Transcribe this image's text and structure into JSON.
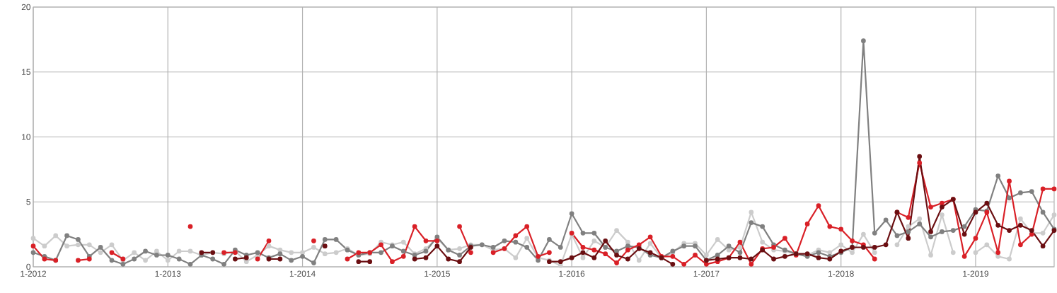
{
  "chart_data": {
    "type": "line",
    "marker": "circle",
    "grid": true,
    "x": [
      "2012-01",
      "2012-02",
      "2012-03",
      "2012-04",
      "2012-05",
      "2012-06",
      "2012-07",
      "2012-08",
      "2012-09",
      "2012-10",
      "2012-11",
      "2012-12",
      "2013-01",
      "2013-02",
      "2013-03",
      "2013-04",
      "2013-05",
      "2013-06",
      "2013-07",
      "2013-08",
      "2013-09",
      "2013-10",
      "2013-11",
      "2013-12",
      "2014-01",
      "2014-02",
      "2014-03",
      "2014-04",
      "2014-05",
      "2014-06",
      "2014-07",
      "2014-08",
      "2014-09",
      "2014-10",
      "2014-11",
      "2014-12",
      "2015-01",
      "2015-02",
      "2015-03",
      "2015-04",
      "2015-05",
      "2015-06",
      "2015-07",
      "2015-08",
      "2015-09",
      "2015-10",
      "2015-11",
      "2015-12",
      "2016-01",
      "2016-02",
      "2016-03",
      "2016-04",
      "2016-05",
      "2016-06",
      "2016-07",
      "2016-08",
      "2016-09",
      "2016-10",
      "2016-11",
      "2016-12",
      "2017-01",
      "2017-02",
      "2017-03",
      "2017-04",
      "2017-05",
      "2017-06",
      "2017-07",
      "2017-08",
      "2017-09",
      "2017-10",
      "2017-11",
      "2017-12",
      "2018-01",
      "2018-02",
      "2018-03",
      "2018-04",
      "2018-05",
      "2018-06",
      "2018-07",
      "2018-08",
      "2018-09",
      "2018-10",
      "2018-11",
      "2018-12",
      "2019-01",
      "2019-02",
      "2019-03",
      "2019-04",
      "2019-05",
      "2019-06",
      "2019-07",
      "2019-08"
    ],
    "xlim": [
      "2012-01",
      "2019-08"
    ],
    "xticks": [
      {
        "value": "2012-01",
        "label": "1-2012"
      },
      {
        "value": "2013-01",
        "label": "1-2013"
      },
      {
        "value": "2014-01",
        "label": "1-2014"
      },
      {
        "value": "2015-01",
        "label": "1-2015"
      },
      {
        "value": "2016-01",
        "label": "1-2016"
      },
      {
        "value": "2017-01",
        "label": "1-2017"
      },
      {
        "value": "2018-01",
        "label": "1-2018"
      },
      {
        "value": "2019-01",
        "label": "1-2019"
      }
    ],
    "ylim": [
      0,
      20
    ],
    "yticks": [
      0,
      5,
      10,
      15,
      20
    ],
    "series": [
      {
        "color": "#cccccc",
        "values": [
          2.2,
          1.6,
          2.4,
          1.6,
          1.7,
          1.7,
          1.1,
          1.7,
          0.5,
          1.1,
          0.5,
          1.2,
          0.5,
          1.2,
          1.2,
          0.9,
          1.1,
          1.0,
          1.2,
          0.4,
          0.9,
          1.6,
          1.3,
          1.1,
          1.1,
          1.5,
          1.0,
          1.1,
          1.4,
          0.9,
          1.0,
          1.9,
          1.7,
          1.9,
          1.0,
          1.4,
          2.2,
          1.3,
          1.4,
          1.7,
          1.7,
          1.3,
          1.4,
          0.7,
          2.2,
          0.7,
          0.5,
          0.1,
          2.5,
          0.7,
          2.0,
          1.5,
          2.8,
          1.9,
          0.5,
          1.8,
          0.7,
          1.1,
          1.8,
          1.8,
          0.9,
          2.1,
          1.3,
          1.5,
          4.2,
          1.9,
          1.3,
          1.2,
          1.0,
          0.9,
          1.3,
          1.1,
          1.7,
          1.1,
          2.5,
          1.1,
          null,
          1.7,
          3.1,
          3.7,
          0.9,
          4.0,
          1.1,
          null,
          1.1,
          1.7,
          0.8,
          0.6,
          3.7,
          2.6,
          2.6,
          4.0
        ]
      },
      {
        "color": "#808080",
        "values": [
          1.1,
          0.8,
          0.5,
          2.4,
          2.1,
          0.8,
          1.5,
          0.5,
          0.2,
          0.6,
          1.2,
          0.9,
          0.9,
          0.6,
          0.2,
          0.9,
          0.6,
          0.2,
          1.3,
          0.9,
          1.1,
          0.7,
          1.0,
          0.5,
          0.8,
          0.3,
          2.1,
          2.1,
          1.3,
          0.9,
          1.1,
          1.1,
          1.6,
          1.2,
          0.9,
          1.2,
          2.3,
          1.3,
          0.9,
          1.6,
          1.7,
          1.5,
          2.0,
          1.9,
          1.5,
          0.5,
          2.1,
          1.5,
          4.1,
          2.6,
          2.6,
          1.5,
          1.2,
          1.6,
          1.5,
          0.9,
          0.7,
          1.2,
          1.6,
          1.6,
          0.5,
          0.9,
          1.6,
          1.1,
          3.4,
          3.1,
          1.7,
          1.3,
          1.0,
          0.8,
          1.1,
          0.8,
          1.1,
          1.5,
          17.4,
          2.6,
          3.6,
          2.4,
          2.7,
          3.3,
          2.3,
          2.7,
          2.8,
          3.1,
          4.4,
          4.3,
          7.0,
          5.3,
          5.7,
          5.8,
          4.2,
          2.9
        ]
      },
      {
        "color": "#d92027",
        "values": [
          1.6,
          0.6,
          0.5,
          null,
          0.5,
          0.6,
          null,
          1.1,
          0.6,
          null,
          null,
          null,
          null,
          null,
          3.1,
          null,
          null,
          1.1,
          1.1,
          null,
          0.6,
          2.0,
          null,
          null,
          null,
          2.0,
          null,
          null,
          0.6,
          1.1,
          1.1,
          1.7,
          0.4,
          0.8,
          3.1,
          2.0,
          2.0,
          null,
          3.1,
          1.1,
          null,
          1.1,
          1.4,
          2.4,
          3.1,
          0.8,
          1.1,
          null,
          2.6,
          1.5,
          1.3,
          1.0,
          0.3,
          1.3,
          1.7,
          2.3,
          0.8,
          0.8,
          0.2,
          0.9,
          0.2,
          0.4,
          0.7,
          1.9,
          0.2,
          1.4,
          1.5,
          2.2,
          0.9,
          3.3,
          4.7,
          3.1,
          2.9,
          2.0,
          1.7,
          0.6,
          null,
          4.2,
          3.8,
          8.0,
          4.6,
          4.9,
          5.2,
          0.8,
          2.2,
          4.2,
          1.1,
          6.6,
          1.7,
          2.5,
          6.0,
          6.0
        ]
      },
      {
        "color": "#6b0f12",
        "values": [
          null,
          null,
          null,
          null,
          null,
          null,
          null,
          null,
          null,
          null,
          null,
          null,
          null,
          null,
          null,
          1.1,
          1.1,
          null,
          0.6,
          0.7,
          null,
          0.6,
          0.6,
          null,
          null,
          null,
          1.6,
          null,
          null,
          0.4,
          0.4,
          null,
          null,
          null,
          0.6,
          0.7,
          1.6,
          0.6,
          0.4,
          1.5,
          null,
          null,
          null,
          null,
          null,
          null,
          0.4,
          0.4,
          0.7,
          1.1,
          0.7,
          2.0,
          0.9,
          0.6,
          1.4,
          1.1,
          0.7,
          0.2,
          null,
          null,
          0.5,
          0.6,
          0.7,
          0.7,
          0.6,
          1.3,
          0.6,
          0.8,
          1.0,
          1.0,
          0.7,
          0.6,
          1.2,
          1.5,
          1.5,
          1.5,
          1.7,
          4.2,
          2.2,
          8.5,
          2.7,
          4.6,
          5.2,
          2.5,
          4.2,
          4.9,
          3.2,
          2.8,
          3.2,
          2.8,
          1.6,
          2.8
        ]
      }
    ]
  }
}
